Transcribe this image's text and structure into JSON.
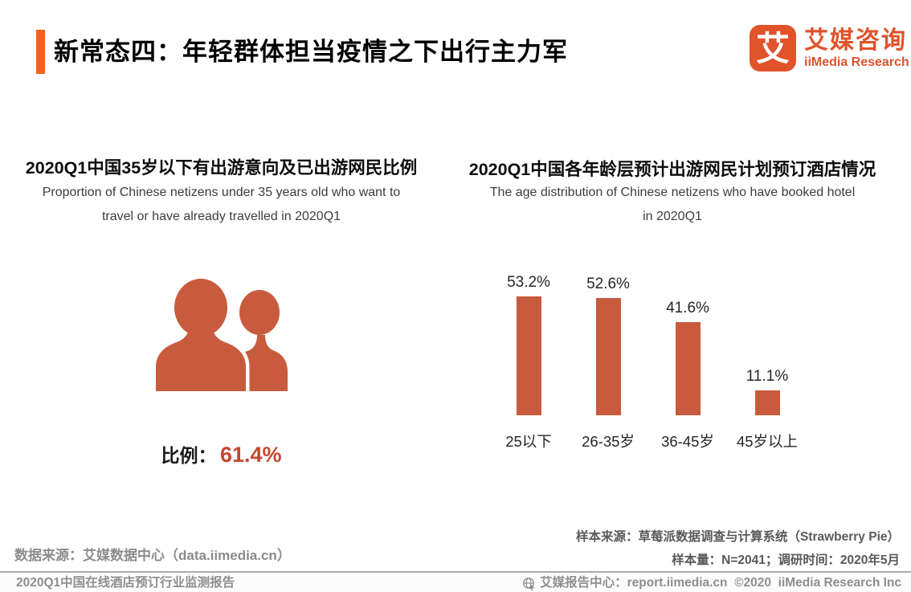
{
  "page": {
    "title": "新常态四：年轻群体担当疫情之下出行主力军",
    "colors": {
      "accent_orange": "#F4631F",
      "logo_orange": "#E0532B",
      "bar_terracotta": "#C85B3D",
      "percent_red": "#C4472F",
      "footnote_gray": "#8C8C8C",
      "sample_gray": "#595959"
    }
  },
  "logo": {
    "mark_char": "艾",
    "name_cn": "艾媒咨询",
    "name_en": "iiMedia Research",
    "mark_icon": "iimedia-logo-mark"
  },
  "left_panel": {
    "title": "2020Q1中国35岁以下有出游意向及已出游网民比例",
    "subtitle_line1": "Proportion of Chinese netizens under 35 years old who want to",
    "subtitle_line2": "travel or have already travelled in 2020Q1",
    "icon": "two-people-silhouette",
    "ratio_label": "比例：",
    "ratio_value": "61.4%"
  },
  "right_panel": {
    "title": "2020Q1中国各年龄层预计出游网民计划预订酒店情况",
    "subtitle_line1": "The age distribution of Chinese netizens who have booked hotel",
    "subtitle_line2": "in 2020Q1"
  },
  "chart_data": {
    "type": "bar",
    "title": "2020Q1中国各年龄层预计出游网民计划预订酒店情况",
    "categories": [
      "25以下",
      "26-35岁",
      "36-45岁",
      "45岁以上"
    ],
    "values": [
      53.2,
      52.6,
      41.6,
      11.1
    ],
    "value_labels": [
      "53.2%",
      "52.6%",
      "41.6%",
      "11.1%"
    ],
    "unit": "%",
    "bar_color": "#C85B3D",
    "ylim": [
      0,
      60
    ],
    "grid": false,
    "axes_shown": false,
    "legend": "none"
  },
  "footnotes": {
    "data_source": "数据来源：艾媒数据中心（data.iimedia.cn）",
    "sample_source": "样本来源：草莓派数据调查与计算系统（Strawberry Pie）",
    "sample_info": "样本量：N=2041；调研时间：2020年5月"
  },
  "footer": {
    "left": "2020Q1中国在线酒店预订行业监测报告",
    "icon": "globe-cursor",
    "right": "艾媒报告中心：report.iimedia.cn  ©2020  iiMedia Research Inc"
  }
}
